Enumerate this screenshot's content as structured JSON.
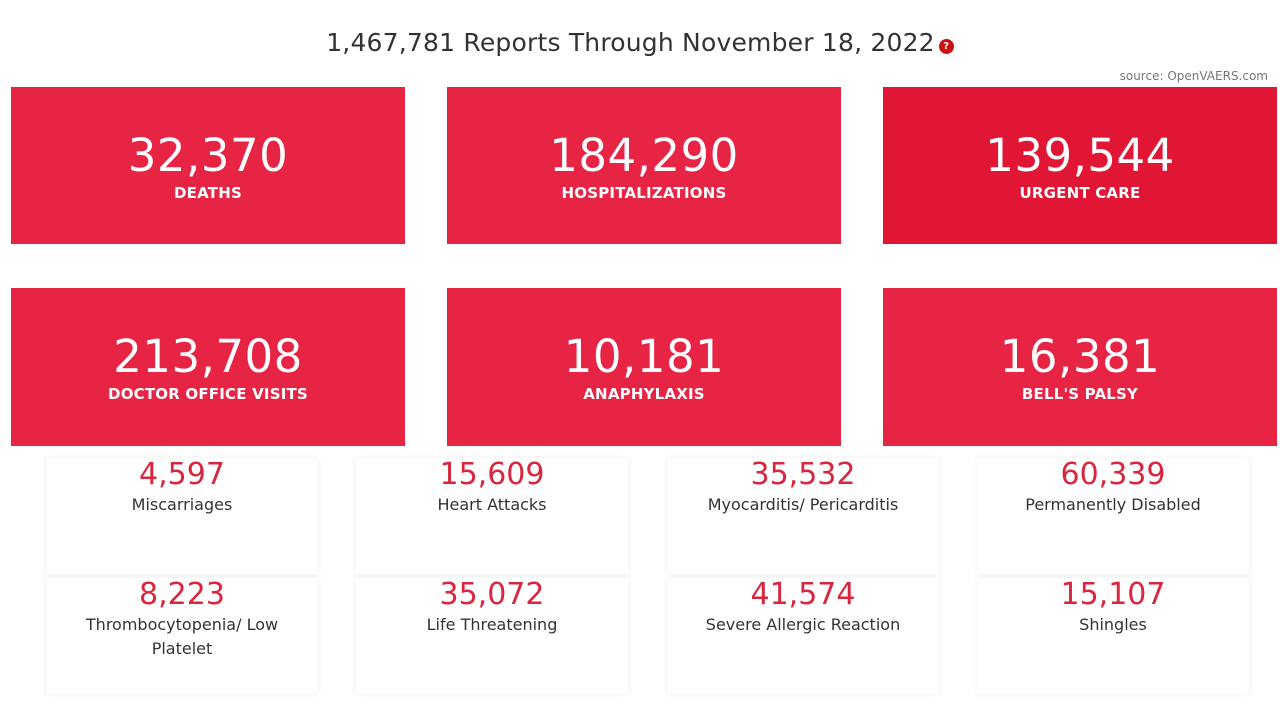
{
  "header": {
    "title": "1,467,781 Reports Through November 18, 2022",
    "help_icon": "?",
    "source": "source: OpenVAERS.com"
  },
  "colors": {
    "card": "#e82445",
    "card_dark": "#e11534",
    "small_number": "#d8263f"
  },
  "big_stats": [
    {
      "value": "32,370",
      "label": "DEATHS"
    },
    {
      "value": "184,290",
      "label": "HOSPITALIZATIONS"
    },
    {
      "value": "139,544",
      "label": "URGENT CARE"
    },
    {
      "value": "213,708",
      "label": "DOCTOR OFFICE VISITS"
    },
    {
      "value": "10,181",
      "label": "ANAPHYLAXIS"
    },
    {
      "value": "16,381",
      "label": "BELL'S PALSY"
    }
  ],
  "small_stats": [
    {
      "value": "4,597",
      "label": "Miscarriages"
    },
    {
      "value": "15,609",
      "label": "Heart Attacks"
    },
    {
      "value": "35,532",
      "label": "Myocarditis/ Pericarditis"
    },
    {
      "value": "60,339",
      "label": "Permanently Disabled"
    },
    {
      "value": "8,223",
      "label": "Thrombocytopenia/ Low Platelet"
    },
    {
      "value": "35,072",
      "label": "Life Threatening"
    },
    {
      "value": "41,574",
      "label": "Severe Allergic Reaction"
    },
    {
      "value": "15,107",
      "label": "Shingles"
    }
  ]
}
